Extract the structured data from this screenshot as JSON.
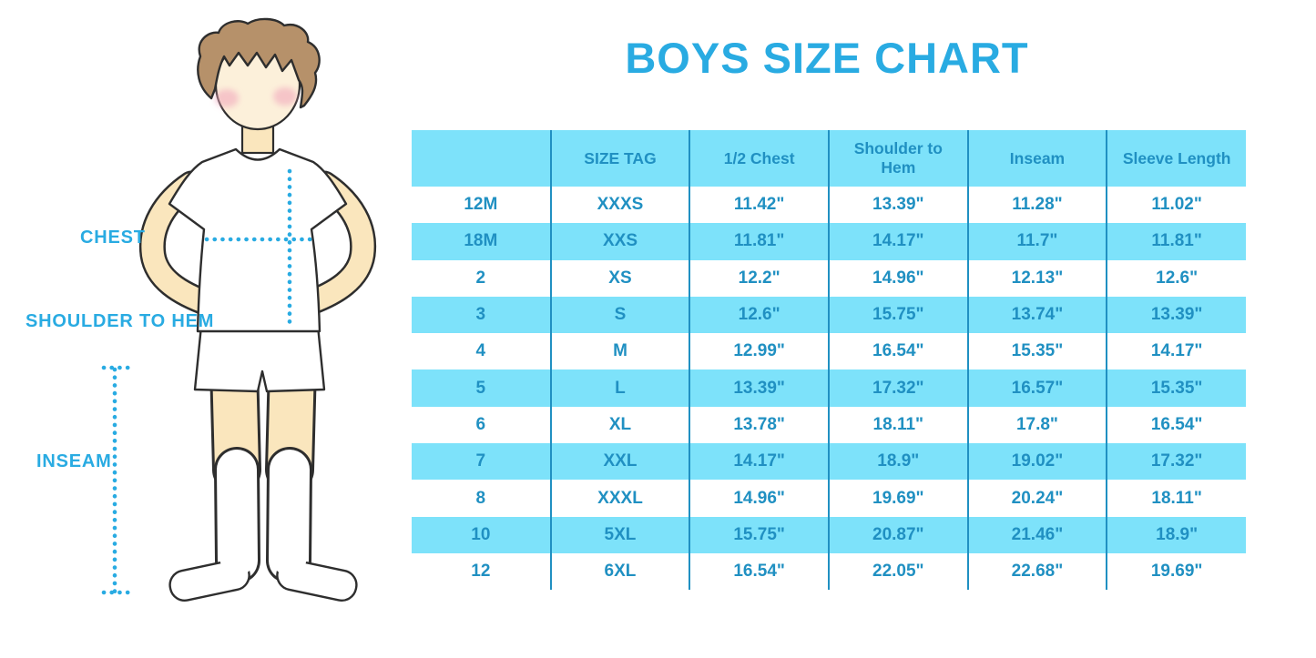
{
  "title": "BOYS SIZE CHART",
  "illustration": {
    "description": "boy-in-white-tshirt-shorts-and-knee-socks",
    "labels": {
      "chest": "CHEST",
      "shoulder_to_hem": "SHOULDER TO HEM",
      "inseam": "INSEAM"
    }
  },
  "colors": {
    "accent_blue": "#29ABE2",
    "table_text": "#2090C2",
    "row_cyan": "#7DE2FA",
    "grid_line": "#2090C2",
    "skin": "#FAE6BD",
    "face": "#FCF0DA",
    "hair": "#B6916A",
    "cheek": "#F1A8BD",
    "outline": "#2E2E2E"
  },
  "chart_data": {
    "type": "table",
    "title": "BOYS SIZE CHART",
    "columns": [
      "",
      "SIZE TAG",
      "1/2 Chest",
      "Shoulder to Hem",
      "Inseam",
      "Sleeve Length"
    ],
    "rows": [
      [
        "12M",
        "XXXS",
        "11.42\"",
        "13.39\"",
        "11.28\"",
        "11.02\""
      ],
      [
        "18M",
        "XXS",
        "11.81\"",
        "14.17\"",
        "11.7\"",
        "11.81\""
      ],
      [
        "2",
        "XS",
        "12.2\"",
        "14.96\"",
        "12.13\"",
        "12.6\""
      ],
      [
        "3",
        "S",
        "12.6\"",
        "15.75\"",
        "13.74\"",
        "13.39\""
      ],
      [
        "4",
        "M",
        "12.99\"",
        "16.54\"",
        "15.35\"",
        "14.17\""
      ],
      [
        "5",
        "L",
        "13.39\"",
        "17.32\"",
        "16.57\"",
        "15.35\""
      ],
      [
        "6",
        "XL",
        "13.78\"",
        "18.11\"",
        "17.8\"",
        "16.54\""
      ],
      [
        "7",
        "XXL",
        "14.17\"",
        "18.9\"",
        "19.02\"",
        "17.32\""
      ],
      [
        "8",
        "XXXL",
        "14.96\"",
        "19.69\"",
        "20.24\"",
        "18.11\""
      ],
      [
        "10",
        "5XL",
        "15.75\"",
        "20.87\"",
        "21.46\"",
        "18.9\""
      ],
      [
        "12",
        "6XL",
        "16.54\"",
        "22.05\"",
        "22.68\"",
        "19.69\""
      ]
    ],
    "layout": {
      "header_fill": "cyan",
      "row_alternation": "white,cyan starting with white",
      "column_dividers": "vertical blue lines only, no horizontal borders"
    }
  }
}
